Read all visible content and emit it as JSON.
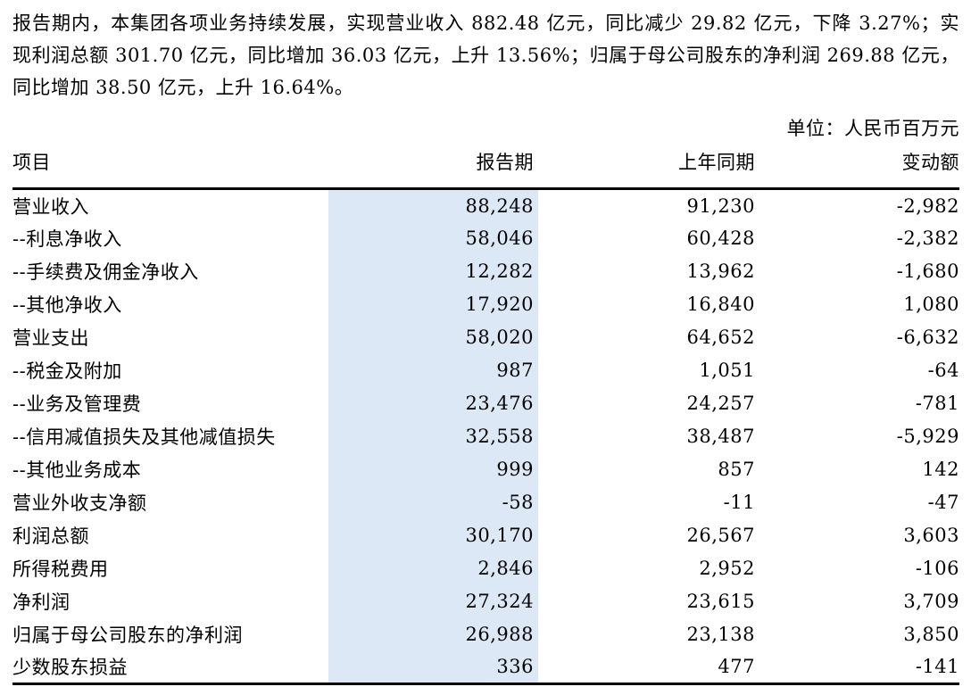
{
  "page": {
    "background_color": "#ffffff",
    "text_color": "#000000",
    "highlight_color": "#dce8f5",
    "rule_color": "#000000"
  },
  "intro_paragraph": "报告期内，本集团各项业务持续发展，实现营业收入 882.48 亿元，同比减少 29.82 亿元，下降 3.27%；实现利润总额 301.70 亿元，同比增加 36.03 亿元，上升 13.56%；归属于母公司股东的净利润 269.88 亿元，同比增加 38.50 亿元，上升 16.64%。",
  "unit_label": "单位：人民币百万元",
  "table": {
    "columns": [
      "项目",
      "报告期",
      "上年同期",
      "变动额"
    ],
    "highlighted_column": "报告期",
    "rows": [
      {
        "item": "营业收入",
        "current": "88,248",
        "prior": "91,230",
        "change": "-2,982"
      },
      {
        "item": "--利息净收入",
        "current": "58,046",
        "prior": "60,428",
        "change": "-2,382"
      },
      {
        "item": "--手续费及佣金净收入",
        "current": "12,282",
        "prior": "13,962",
        "change": "-1,680"
      },
      {
        "item": "--其他净收入",
        "current": "17,920",
        "prior": "16,840",
        "change": "1,080"
      },
      {
        "item": "营业支出",
        "current": "58,020",
        "prior": "64,652",
        "change": "-6,632"
      },
      {
        "item": "--税金及附加",
        "current": "987",
        "prior": "1,051",
        "change": "-64"
      },
      {
        "item": "--业务及管理费",
        "current": "23,476",
        "prior": "24,257",
        "change": "-781"
      },
      {
        "item": "--信用减值损失及其他减值损失",
        "current": "32,558",
        "prior": "38,487",
        "change": "-5,929"
      },
      {
        "item": "--其他业务成本",
        "current": "999",
        "prior": "857",
        "change": "142"
      },
      {
        "item": "营业外收支净额",
        "current": "-58",
        "prior": "-11",
        "change": "-47"
      },
      {
        "item": "利润总额",
        "current": "30,170",
        "prior": "26,567",
        "change": "3,603"
      },
      {
        "item": "所得税费用",
        "current": "2,846",
        "prior": "2,952",
        "change": "-106"
      },
      {
        "item": "净利润",
        "current": "27,324",
        "prior": "23,615",
        "change": "3,709"
      },
      {
        "item": "归属于母公司股东的净利润",
        "current": "26,988",
        "prior": "23,138",
        "change": "3,850"
      },
      {
        "item": "少数股东损益",
        "current": "336",
        "prior": "477",
        "change": "-141"
      }
    ]
  }
}
